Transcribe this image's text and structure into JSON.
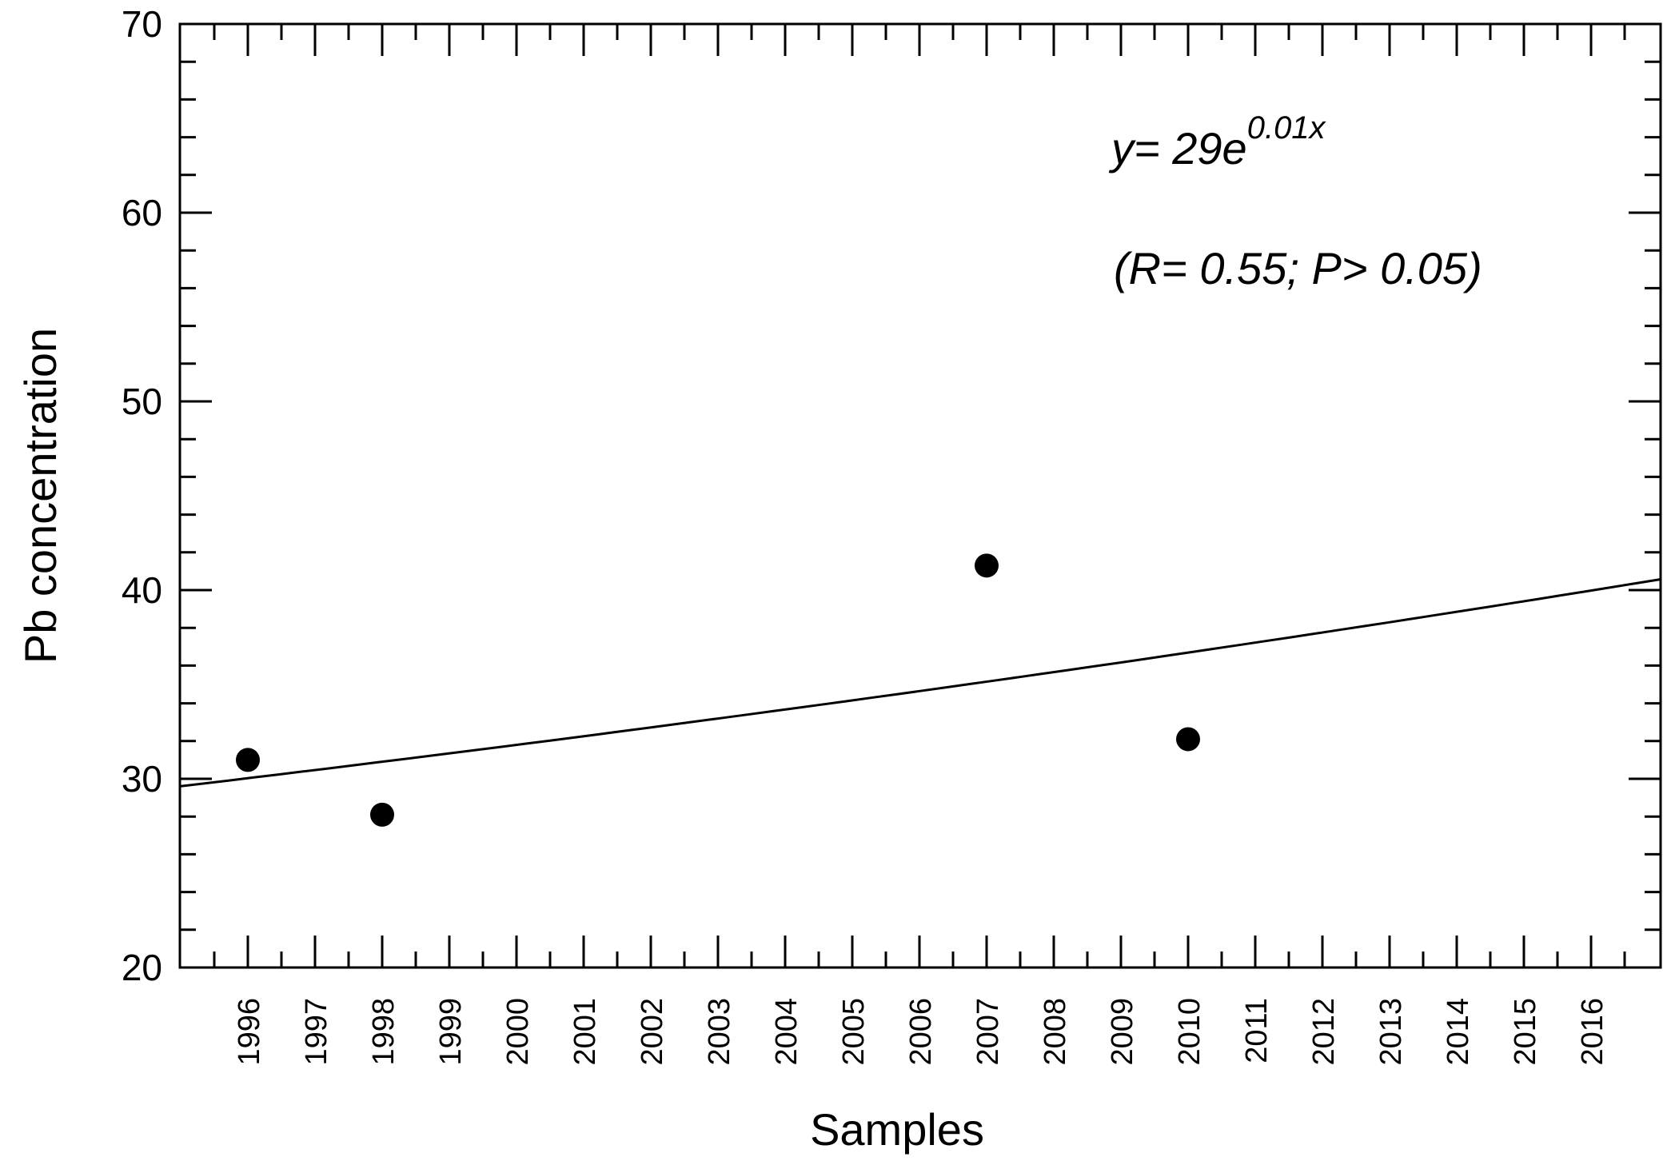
{
  "chart_data": {
    "type": "scatter",
    "xlabel": "Samples",
    "ylabel": "Pb concentration",
    "ylim": [
      20,
      70
    ],
    "y_ticks": [
      20,
      30,
      40,
      50,
      60,
      70
    ],
    "x_ticks": [
      "1996",
      "1997",
      "1998",
      "1999",
      "2000",
      "2001",
      "2002",
      "2003",
      "2004",
      "2005",
      "2006",
      "2007",
      "2008",
      "2009",
      "2010",
      "2011",
      "2012",
      "2013",
      "2014",
      "2015",
      "2016"
    ],
    "points": [
      {
        "x": 1996,
        "y": 31
      },
      {
        "x": 1998,
        "y": 28.1
      },
      {
        "x": 2007,
        "y": 41.3
      },
      {
        "x": 2010,
        "y": 32.1
      }
    ],
    "trendline": {
      "equation": "y= 29e^0.01x",
      "eq_base": "y= 29e",
      "eq_exp": "0.01x",
      "stats": "(R= 0.55; P> 0.05)"
    },
    "grid": false
  }
}
